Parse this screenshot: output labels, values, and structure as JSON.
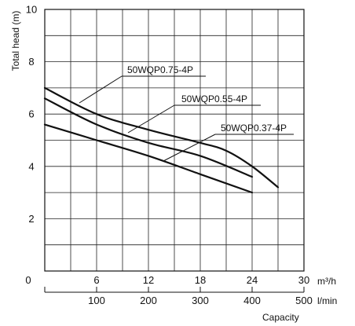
{
  "chart_data": {
    "type": "line",
    "ylabel": "Total head (m)",
    "xlabel": "Capacity",
    "x_unit_top": "m³/h",
    "x_unit_bottom": "l/min",
    "xlim_top": [
      0,
      30
    ],
    "xlim_bottom": [
      0,
      500
    ],
    "ylim": [
      0,
      10
    ],
    "grid": true,
    "x_ticks_top": [
      "0",
      "6",
      "12",
      "18",
      "24",
      "30"
    ],
    "x_ticks_bottom": [
      "100",
      "200",
      "300",
      "400",
      "500"
    ],
    "y_ticks": [
      "2",
      "4",
      "6",
      "8",
      "10"
    ],
    "y_tick_values": [
      2,
      4,
      6,
      8,
      10
    ],
    "x_tick_values_top": [
      0,
      6,
      12,
      18,
      24,
      30
    ],
    "x_tick_values_bottom": [
      100,
      200,
      300,
      400,
      500
    ],
    "series": [
      {
        "name": "50WQP0.75-4P",
        "x": [
          0,
          6,
          12,
          18,
          21,
          24,
          27
        ],
        "y": [
          7.0,
          6.0,
          5.4,
          4.9,
          4.6,
          4.0,
          3.2
        ]
      },
      {
        "name": "50WQP0.55-4P",
        "x": [
          0,
          6,
          12,
          18,
          24
        ],
        "y": [
          6.6,
          5.6,
          4.9,
          4.4,
          3.6
        ]
      },
      {
        "name": "50WQP0.37-4P",
        "x": [
          0,
          6,
          12,
          18,
          24
        ],
        "y": [
          5.6,
          5.0,
          4.4,
          3.7,
          3.0
        ]
      }
    ]
  }
}
